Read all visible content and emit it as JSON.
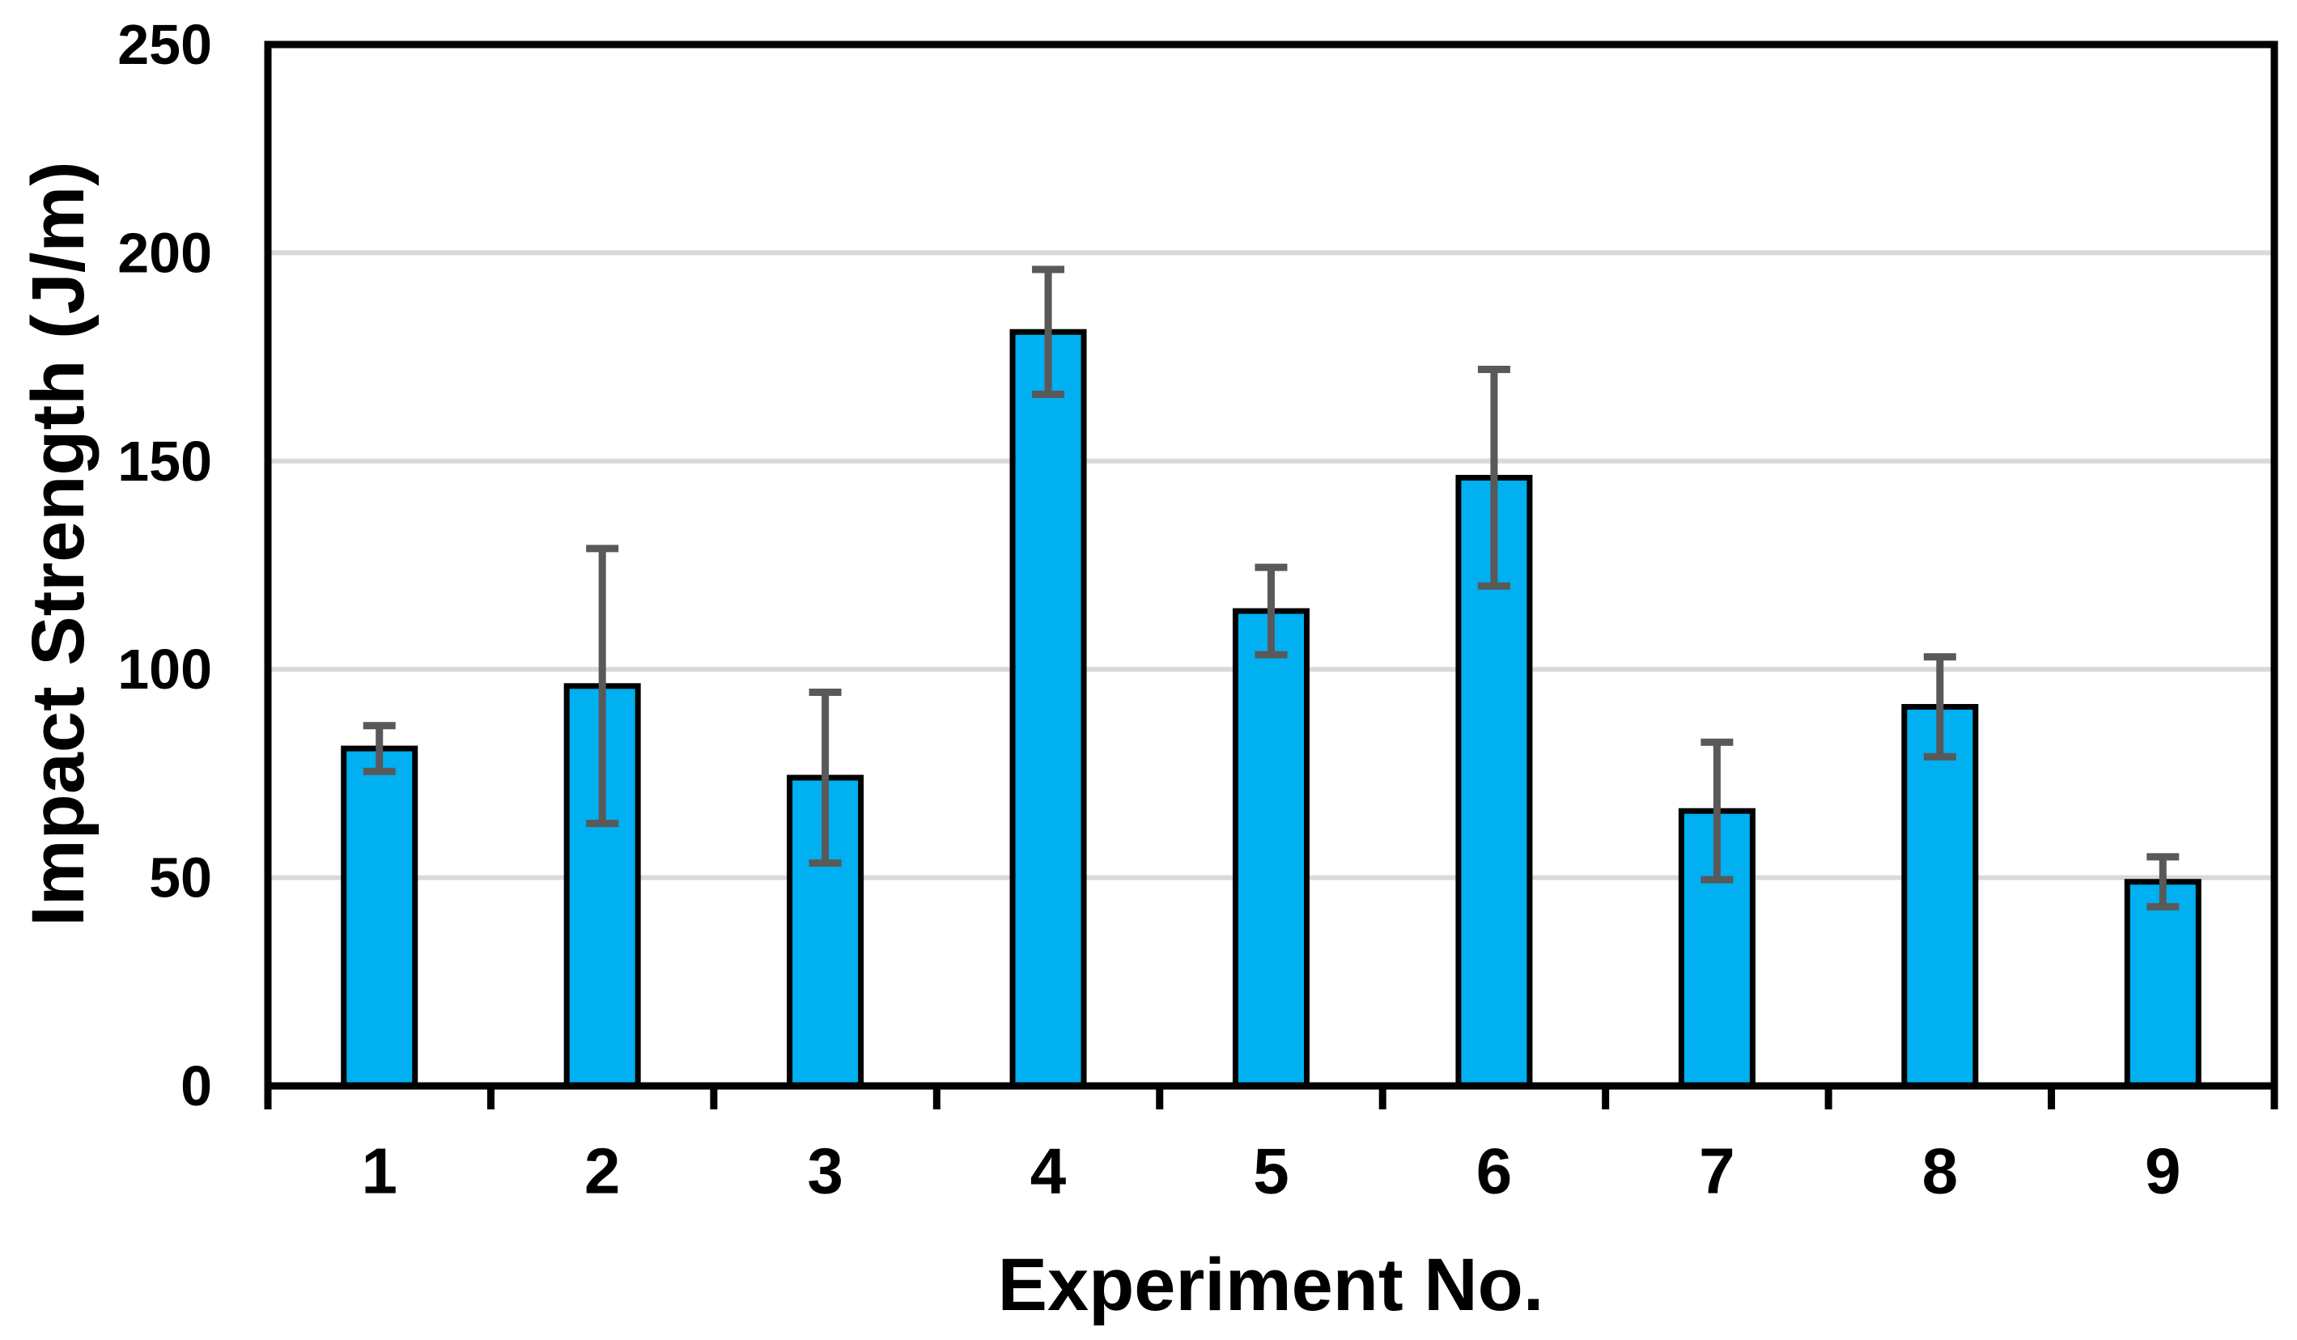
{
  "chart_data": {
    "type": "bar",
    "title": "",
    "xlabel": "Experiment No.",
    "ylabel": "Impact Strength (J/m)",
    "categories": [
      "1",
      "2",
      "3",
      "4",
      "5",
      "6",
      "7",
      "8",
      "9"
    ],
    "values": [
      81,
      96,
      74,
      181,
      114,
      146,
      66,
      91,
      49
    ],
    "error_bars": [
      5.5,
      33,
      20.5,
      15,
      10.5,
      26,
      16.5,
      12,
      6
    ],
    "ylim": [
      0,
      250
    ],
    "ytick_step": 50,
    "yticks": [
      "0",
      "50",
      "100",
      "150",
      "200",
      "250"
    ],
    "grid": "horizontal",
    "legend_position": "none",
    "colors": {
      "bar_fill": "#00B0F0",
      "bar_border": "#000000",
      "error_bar": "#595959",
      "gridline": "#D9D9D9",
      "axis": "#000000",
      "background": "#FFFFFF",
      "text": "#000000"
    }
  }
}
